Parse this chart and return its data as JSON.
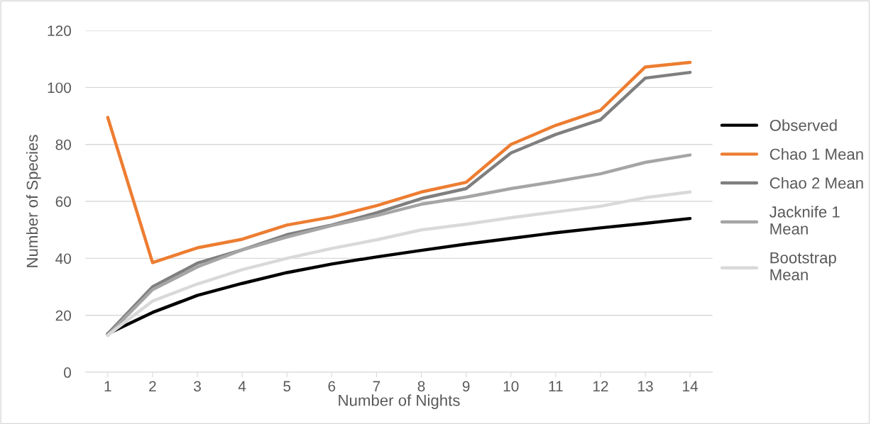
{
  "chart_data": {
    "type": "line",
    "xlabel": "Number of Nights",
    "ylabel": "Number of Species",
    "categories": [
      "1",
      "2",
      "3",
      "4",
      "5",
      "6",
      "7",
      "8",
      "9",
      "10",
      "11",
      "12",
      "13",
      "14"
    ],
    "ylim": [
      0,
      120
    ],
    "yticks": [
      0,
      20,
      40,
      60,
      80,
      100,
      120
    ],
    "grid": "y",
    "legend": "right",
    "marker": "none",
    "line_style": "solid",
    "series": [
      {
        "name": "Observed",
        "color": "#000000",
        "values": [
          13.5,
          21,
          27,
          31.2,
          35,
          38,
          40.5,
          42.8,
          45,
          47,
          49,
          50.7,
          52.3,
          54
        ]
      },
      {
        "name": "Chao 1 Mean",
        "color": "#ed7d31",
        "values": [
          89.5,
          38.5,
          43.7,
          46.7,
          51.7,
          54.5,
          58.5,
          63.3,
          66.7,
          80,
          86.7,
          92,
          107.2,
          108.8
        ]
      },
      {
        "name": "Chao 2 Mean",
        "color": "#7f7f7f",
        "values": [
          13.5,
          30,
          38.3,
          43,
          48.3,
          51.7,
          56,
          61,
          64.5,
          77,
          83.5,
          88.7,
          103.3,
          105.3
        ]
      },
      {
        "name": "Jacknife 1\nMean",
        "color": "#a5a5a5",
        "values": [
          13,
          29,
          37,
          43,
          47.5,
          51.5,
          55,
          59,
          61.5,
          64.5,
          67,
          69.7,
          73.7,
          76.3
        ]
      },
      {
        "name": "Bootstrap\nMean",
        "color": "#d9d9d9",
        "values": [
          13,
          25,
          31,
          36,
          40,
          43.5,
          46.5,
          50,
          52,
          54.3,
          56.3,
          58.3,
          61.3,
          63.3
        ]
      }
    ]
  }
}
